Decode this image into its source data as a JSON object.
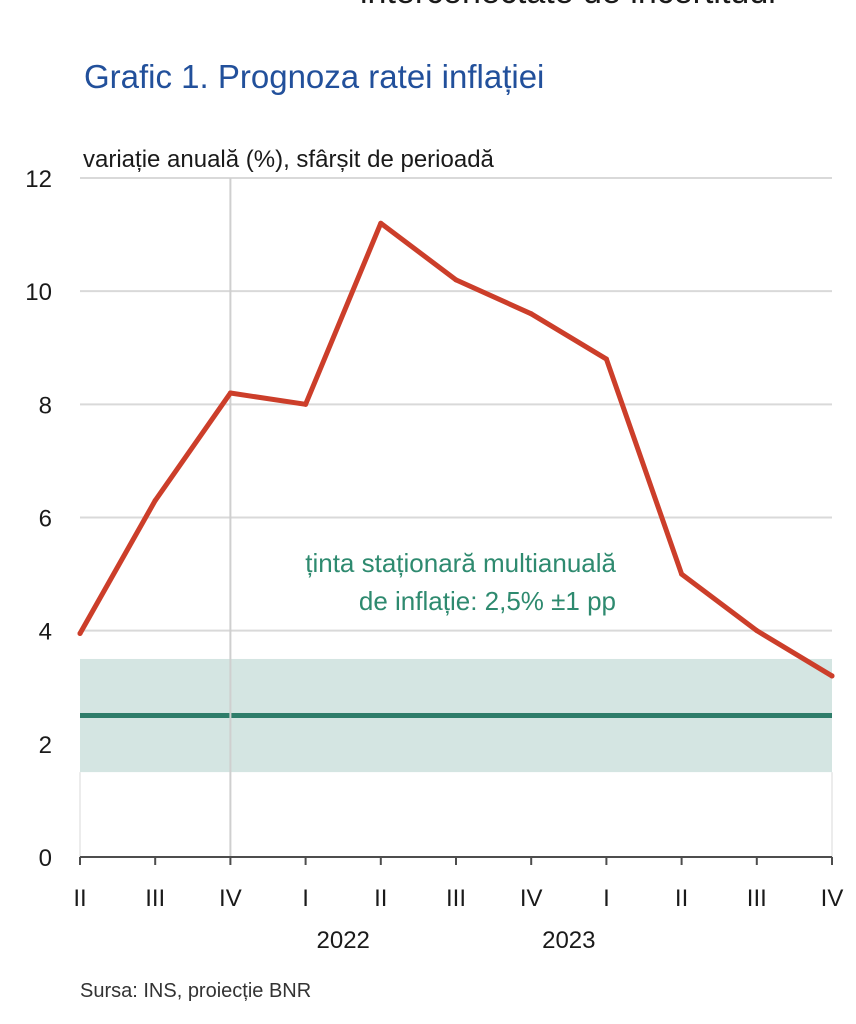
{
  "header_fragment": "interconectate de incertitudi",
  "chart_data": {
    "type": "line",
    "title": "Grafic 1. Prognoza ratei inflației",
    "subtitle": "variație anuală (%), sfârșit de perioadă",
    "x_quarters": [
      "II",
      "III",
      "IV",
      "I",
      "II",
      "III",
      "IV",
      "I",
      "II",
      "III",
      "IV"
    ],
    "years": [
      {
        "label": "2022",
        "center_index": 4
      },
      {
        "label": "2023",
        "center_index": 7
      }
    ],
    "series": [
      {
        "values": [
          3.95,
          6.3,
          8.2,
          8.0,
          11.2,
          10.2,
          9.6,
          8.8,
          5.0,
          4.0,
          3.2
        ],
        "color": "#cc3e2a"
      }
    ],
    "target": {
      "value": 2.5,
      "lower": 1.5,
      "upper": 3.5,
      "label_line1": "ținta staționară multianuală",
      "label_line2": "de inflație: 2,5% ±1 pp",
      "line_color": "#2e7d6a",
      "band_color": "#d4e5e2",
      "label_color": "#2e8a6f"
    },
    "ylim": [
      0,
      12
    ],
    "yticks": [
      0,
      2,
      4,
      6,
      8,
      10,
      12
    ],
    "ytick_labels": [
      "0",
      "2",
      "4",
      "6",
      "8",
      "10",
      "12"
    ],
    "vertical_marker_index": 2,
    "grid": true,
    "source": "Sursa: INS, proiecție BNR"
  }
}
